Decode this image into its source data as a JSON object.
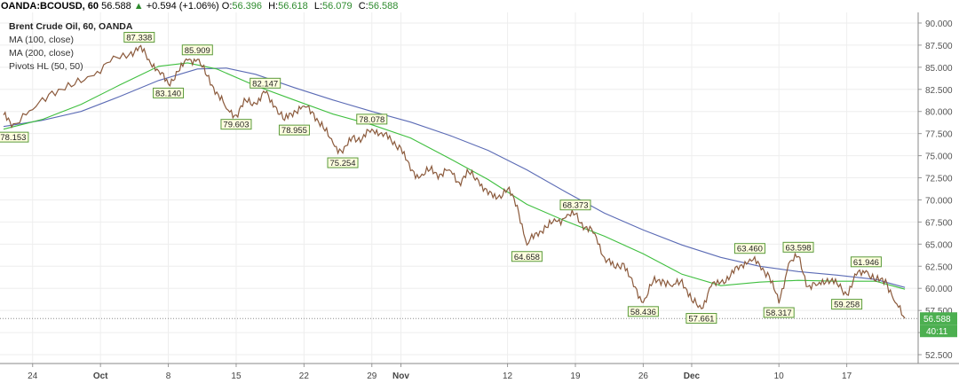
{
  "header": {
    "symbol": "OANDA:BCOUSD, 60",
    "last": "56.588",
    "change_arrow": "▲",
    "change": "+0.594 (+1.06%)",
    "o_label": "O:",
    "o": "56.396",
    "h_label": "H:",
    "h": "56.618",
    "l_label": "L:",
    "l": "56.079",
    "c_label": "C:",
    "c": "56.588"
  },
  "legend": {
    "title": "Brent Crude Oil, 60, OANDA",
    "ma100": "MA (100, close)",
    "ma200": "MA (200, close)",
    "pivots": "Pivots HL (50, 50)"
  },
  "colors": {
    "up": "#2e8b2e",
    "price": "#8b5a3c",
    "ma100": "#3fbf3f",
    "ma200": "#5b6bb5",
    "pivot_fill": "#ffffe0",
    "pivot_border": "#5a9a3a",
    "price_label_bg": "#4caf50",
    "last_line": "#8a8a8a"
  },
  "chart_data": {
    "type": "line",
    "title": "Brent Crude Oil, 60, OANDA",
    "ylim": [
      51.5,
      91.2
    ],
    "grid": true,
    "x_ticks": [
      {
        "label": "24",
        "t": 3
      },
      {
        "label": "Oct",
        "t": 10
      },
      {
        "label": "8",
        "t": 17
      },
      {
        "label": "15",
        "t": 24
      },
      {
        "label": "22",
        "t": 31
      },
      {
        "label": "29",
        "t": 38
      },
      {
        "label": "Nov",
        "t": 41
      },
      {
        "label": "12",
        "t": 52
      },
      {
        "label": "19",
        "t": 59
      },
      {
        "label": "26",
        "t": 66
      },
      {
        "label": "Dec",
        "t": 71
      },
      {
        "label": "10",
        "t": 80
      },
      {
        "label": "17",
        "t": 87
      }
    ],
    "y_ticks": [
      "52.500",
      "55.000",
      "57.500",
      "60.000",
      "62.500",
      "65.000",
      "67.500",
      "70.000",
      "72.500",
      "75.000",
      "77.500",
      "80.000",
      "82.500",
      "85.000",
      "87.500",
      "90.000"
    ],
    "series": [
      {
        "name": "Brent Crude Oil",
        "points": [
          [
            0,
            79.6
          ],
          [
            1,
            78.6
          ],
          [
            3,
            80.2
          ],
          [
            5,
            82.3
          ],
          [
            7,
            82.8
          ],
          [
            9,
            84.0
          ],
          [
            11,
            85.6
          ],
          [
            13,
            86.5
          ],
          [
            14,
            87.3
          ],
          [
            15,
            85.9
          ],
          [
            16,
            84.6
          ],
          [
            17,
            83.1
          ],
          [
            18,
            84.5
          ],
          [
            19,
            85.8
          ],
          [
            20,
            85.9
          ],
          [
            21,
            84.0
          ],
          [
            22,
            82.2
          ],
          [
            23,
            80.3
          ],
          [
            24,
            79.6
          ],
          [
            25,
            81.2
          ],
          [
            26,
            80.9
          ],
          [
            27,
            82.1
          ],
          [
            28,
            80.6
          ],
          [
            29,
            79.0
          ],
          [
            30,
            80.1
          ],
          [
            31,
            80.6
          ],
          [
            32,
            79.8
          ],
          [
            33,
            78.1
          ],
          [
            34,
            76.4
          ],
          [
            35,
            75.3
          ],
          [
            36,
            77.1
          ],
          [
            37,
            76.9
          ],
          [
            38,
            78.0
          ],
          [
            39,
            77.6
          ],
          [
            40,
            76.7
          ],
          [
            41,
            75.9
          ],
          [
            42,
            73.3
          ],
          [
            43,
            72.6
          ],
          [
            44,
            73.4
          ],
          [
            45,
            72.9
          ],
          [
            46,
            73.4
          ],
          [
            47,
            72.0
          ],
          [
            48,
            73.1
          ],
          [
            49,
            72.2
          ],
          [
            50,
            70.6
          ],
          [
            51,
            70.3
          ],
          [
            52,
            71.2
          ],
          [
            53,
            69.4
          ],
          [
            54,
            64.9
          ],
          [
            55,
            66.3
          ],
          [
            56,
            66.9
          ],
          [
            57,
            67.6
          ],
          [
            58,
            68.0
          ],
          [
            59,
            68.4
          ],
          [
            60,
            66.9
          ],
          [
            61,
            66.2
          ],
          [
            62,
            63.5
          ],
          [
            63,
            62.4
          ],
          [
            64,
            62.8
          ],
          [
            65,
            60.2
          ],
          [
            66,
            58.4
          ],
          [
            67,
            60.7
          ],
          [
            68,
            61.0
          ],
          [
            69,
            60.2
          ],
          [
            70,
            61.0
          ],
          [
            71,
            58.6
          ],
          [
            72,
            57.7
          ],
          [
            73,
            60.2
          ],
          [
            74,
            60.7
          ],
          [
            75,
            61.4
          ],
          [
            76,
            62.6
          ],
          [
            77,
            63.3
          ],
          [
            78,
            62.7
          ],
          [
            79,
            61.4
          ],
          [
            80,
            58.3
          ],
          [
            81,
            62.8
          ],
          [
            82,
            63.6
          ],
          [
            83,
            60.2
          ],
          [
            84,
            60.4
          ],
          [
            85,
            61.1
          ],
          [
            86,
            60.5
          ],
          [
            87,
            59.3
          ],
          [
            88,
            61.5
          ],
          [
            89,
            62.0
          ],
          [
            90,
            60.8
          ],
          [
            91,
            61.0
          ],
          [
            92,
            58.4
          ],
          [
            93,
            56.6
          ]
        ]
      },
      {
        "name": "MA (100, close)",
        "points": [
          [
            0,
            78.0
          ],
          [
            4,
            79.1
          ],
          [
            8,
            80.8
          ],
          [
            12,
            83.0
          ],
          [
            16,
            85.1
          ],
          [
            19,
            85.5
          ],
          [
            22,
            84.8
          ],
          [
            26,
            82.9
          ],
          [
            30,
            81.3
          ],
          [
            34,
            79.7
          ],
          [
            38,
            78.5
          ],
          [
            42,
            77.0
          ],
          [
            46,
            74.7
          ],
          [
            50,
            72.3
          ],
          [
            54,
            69.5
          ],
          [
            58,
            67.6
          ],
          [
            62,
            65.9
          ],
          [
            66,
            63.9
          ],
          [
            70,
            61.6
          ],
          [
            74,
            60.3
          ],
          [
            78,
            60.7
          ],
          [
            82,
            60.9
          ],
          [
            86,
            60.8
          ],
          [
            90,
            60.8
          ],
          [
            93,
            59.9
          ]
        ]
      },
      {
        "name": "MA (200, close)",
        "points": [
          [
            0,
            78.3
          ],
          [
            4,
            79.0
          ],
          [
            8,
            80.0
          ],
          [
            12,
            81.7
          ],
          [
            16,
            83.5
          ],
          [
            20,
            84.8
          ],
          [
            23,
            84.9
          ],
          [
            26,
            84.2
          ],
          [
            30,
            82.7
          ],
          [
            34,
            81.3
          ],
          [
            38,
            80.0
          ],
          [
            42,
            78.8
          ],
          [
            46,
            77.3
          ],
          [
            50,
            75.6
          ],
          [
            54,
            73.4
          ],
          [
            58,
            70.9
          ],
          [
            62,
            68.5
          ],
          [
            66,
            66.6
          ],
          [
            70,
            64.9
          ],
          [
            74,
            63.5
          ],
          [
            78,
            62.5
          ],
          [
            82,
            61.9
          ],
          [
            86,
            61.5
          ],
          [
            90,
            61.0
          ],
          [
            93,
            60.1
          ]
        ]
      }
    ],
    "pivots": [
      {
        "label": "87.338",
        "t": 14,
        "v": 87.338,
        "type": "high"
      },
      {
        "label": "85.909",
        "t": 20,
        "v": 85.909,
        "type": "high"
      },
      {
        "label": "82.147",
        "t": 27,
        "v": 82.147,
        "type": "high"
      },
      {
        "label": "78.078",
        "t": 38,
        "v": 78.078,
        "type": "high"
      },
      {
        "label": "68.373",
        "t": 59,
        "v": 68.373,
        "type": "high"
      },
      {
        "label": "63.460",
        "t": 77,
        "v": 63.46,
        "type": "high"
      },
      {
        "label": "63.598",
        "t": 82,
        "v": 63.598,
        "type": "high"
      },
      {
        "label": "61.946",
        "t": 89,
        "v": 61.946,
        "type": "high"
      },
      {
        "label": "78.153",
        "t": 1,
        "v": 78.153,
        "type": "low"
      },
      {
        "label": "83.140",
        "t": 17,
        "v": 83.14,
        "type": "low"
      },
      {
        "label": "79.603",
        "t": 24,
        "v": 79.603,
        "type": "low"
      },
      {
        "label": "78.955",
        "t": 30,
        "v": 78.955,
        "type": "low"
      },
      {
        "label": "75.254",
        "t": 35,
        "v": 75.254,
        "type": "low"
      },
      {
        "label": "64.658",
        "t": 54,
        "v": 64.658,
        "type": "low"
      },
      {
        "label": "58.436",
        "t": 66,
        "v": 58.436,
        "type": "low"
      },
      {
        "label": "57.661",
        "t": 72,
        "v": 57.661,
        "type": "low"
      },
      {
        "label": "58.317",
        "t": 80,
        "v": 58.317,
        "type": "low"
      },
      {
        "label": "59.258",
        "t": 87,
        "v": 59.258,
        "type": "low"
      }
    ],
    "last_price": {
      "value": 56.588,
      "label": "56.588"
    },
    "countdown": "40:11"
  }
}
